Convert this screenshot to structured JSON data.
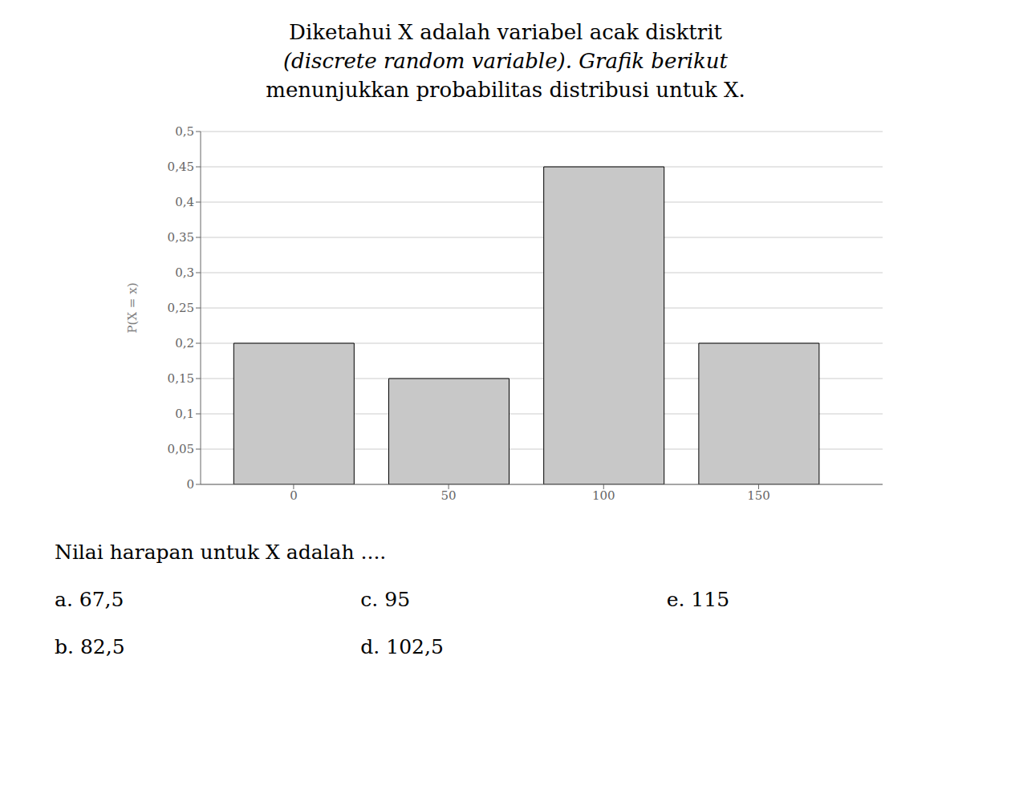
{
  "chart_data": {
    "type": "bar",
    "title": [
      "Diketahui  X  adalah variabel acak  disktrit",
      "(discrete random variable). Grafik berikut",
      "menunjukkan probabilitas distribusi untuk X."
    ],
    "ylabel": "P(X = x)",
    "x": [
      0,
      50,
      100,
      150
    ],
    "values": [
      0.2,
      0.15,
      0.45,
      0.2
    ],
    "color": "#c8c8c8",
    "xlim": [
      -30,
      190
    ],
    "xticks": [
      0,
      50,
      100,
      150
    ],
    "ylim": [
      0,
      0.5
    ],
    "yticks": [
      0,
      {
        "value": 0.05,
        "label": "0,05"
      },
      {
        "value": 0.1,
        "label": "0,1"
      },
      {
        "value": 0.15,
        "label": "0,15"
      },
      {
        "value": 0.2,
        "label": "0,2"
      },
      {
        "value": 0.25,
        "label": "0,25"
      },
      {
        "value": 0.3,
        "label": "0,3"
      },
      {
        "value": 0.35,
        "label": "0,35"
      },
      {
        "value": 0.4,
        "label": "0,4"
      },
      {
        "value": 0.45,
        "label": "0,45"
      },
      {
        "value": 0.5,
        "label": "0,5"
      }
    ],
    "grid": true,
    "annotations": [
      "Nilai harapan untuk X adalah ....",
      "a.  67,5",
      "c.  95",
      "e.  115",
      "b.  82,5",
      "d.  102,5"
    ]
  }
}
